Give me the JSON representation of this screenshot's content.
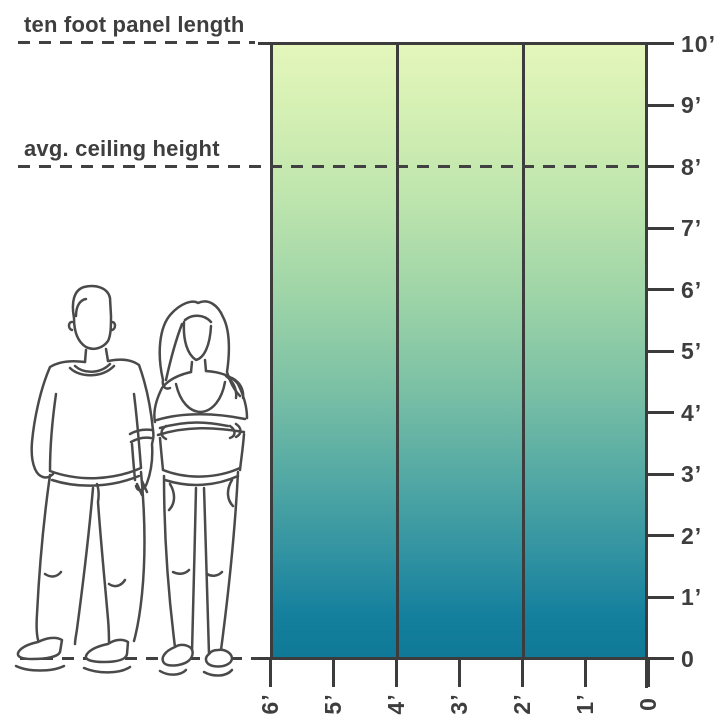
{
  "annotations": {
    "panel_length_label": "ten foot panel length",
    "ceiling_label": "avg. ceiling height"
  },
  "y_axis": {
    "unit": "feet",
    "tick_labels": [
      "10’",
      "9’",
      "8’",
      "7’",
      "6’",
      "5’",
      "4’",
      "3’",
      "2’",
      "1’",
      "0"
    ]
  },
  "x_axis": {
    "unit": "feet",
    "tick_labels": [
      "6’",
      "5’",
      "4’",
      "3’",
      "2’",
      "1’",
      "0"
    ]
  },
  "panel": {
    "sections": 3,
    "height_feet": 10,
    "width_feet": 6,
    "gradient_top": "#e4f6bb",
    "gradient_middle": "#8fcca5",
    "gradient_bottom": "#117b9a"
  },
  "reference_lines_feet": [
    10,
    8,
    0
  ],
  "colors": {
    "line": "#3c3c3c",
    "text": "#3e3e3e"
  },
  "illustration": {
    "name": "man-and-woman-line-art"
  }
}
